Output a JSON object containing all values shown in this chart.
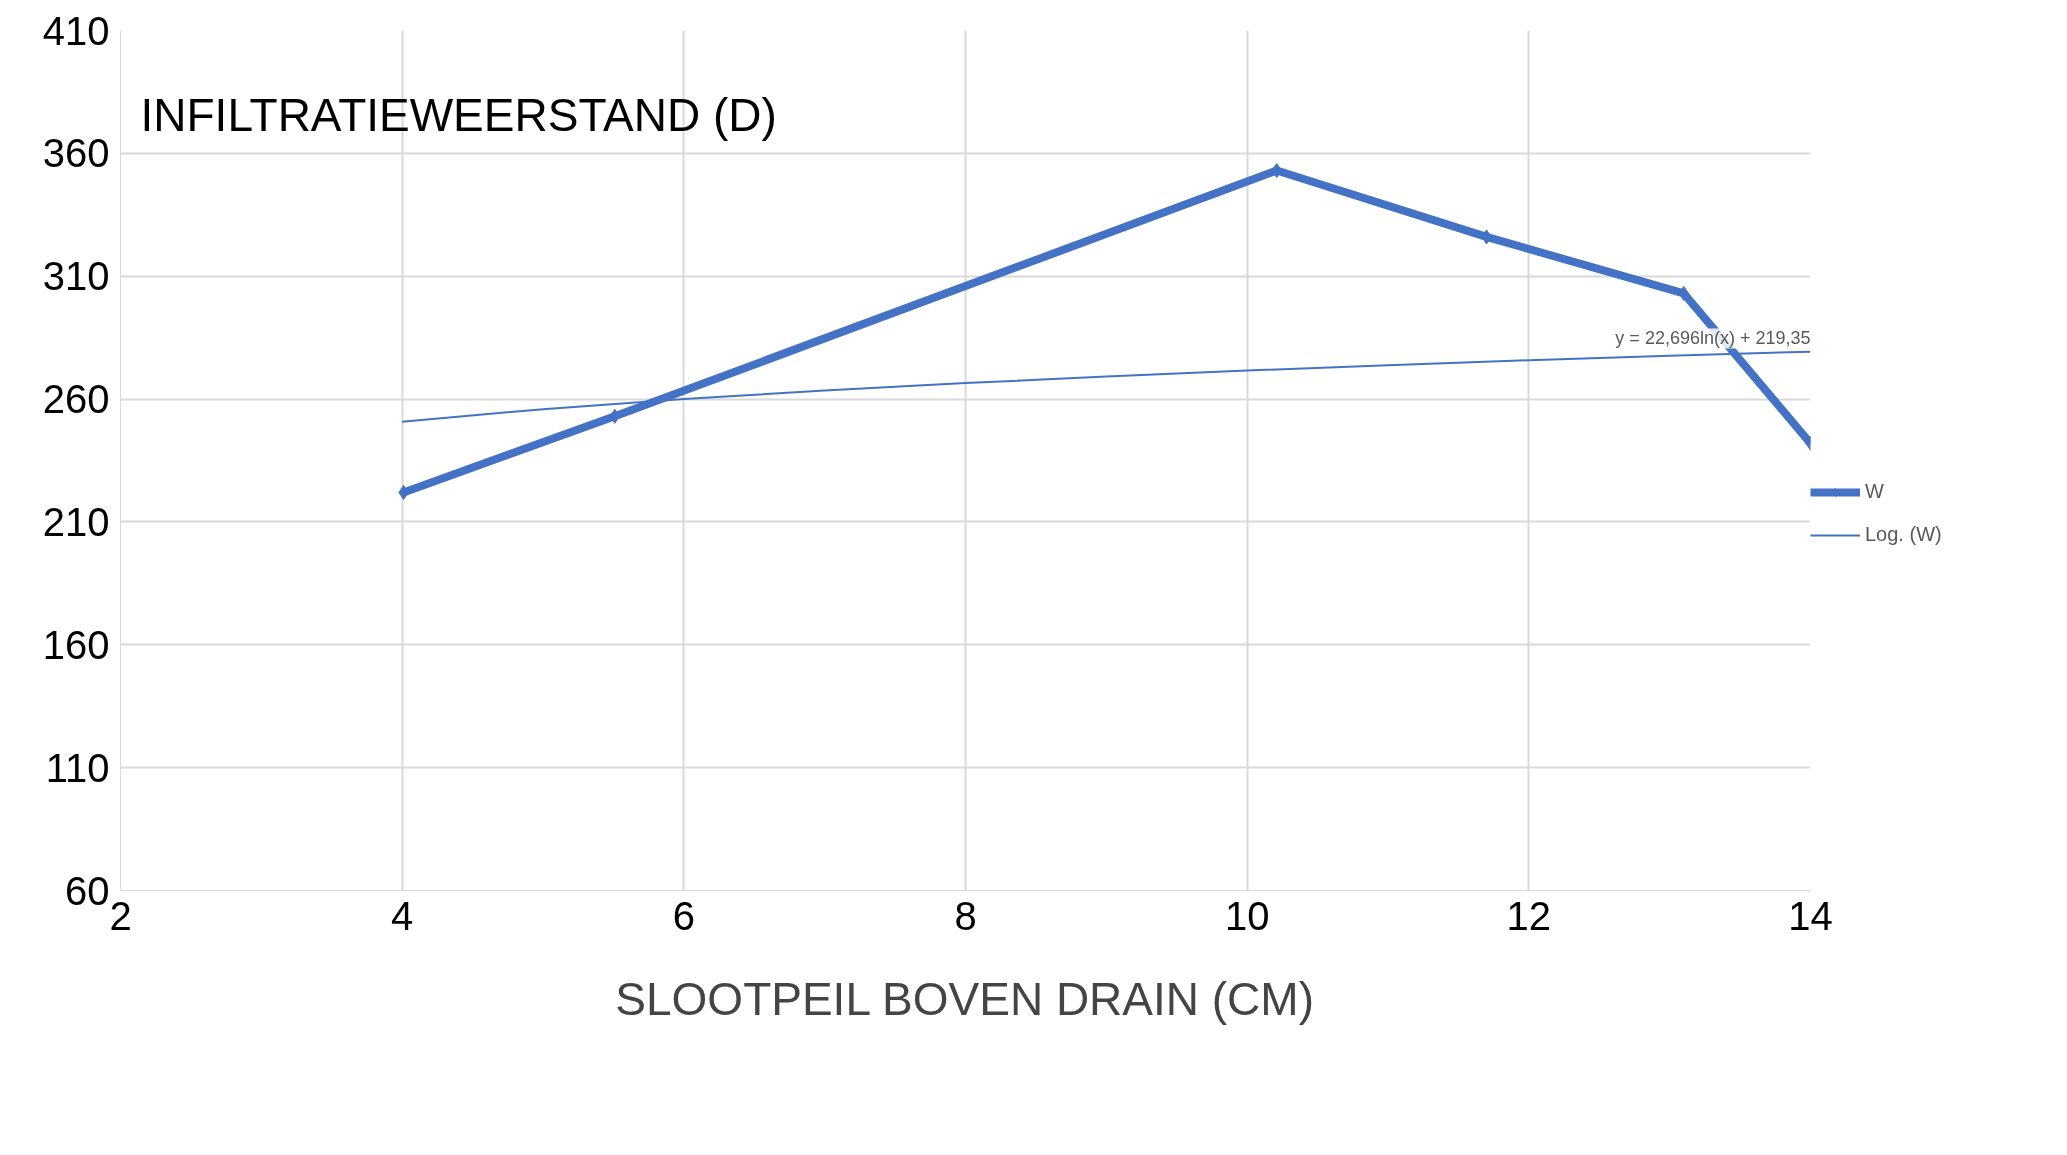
{
  "chart_data": {
    "type": "line",
    "xlabel": "SLOOTPEIL BOVEN DRAIN (CM)",
    "ylabel": "INFILTRATIEWEERSTAND (D)",
    "xlim": [
      2,
      14
    ],
    "xticks": [
      2,
      4,
      6,
      8,
      10,
      12,
      14
    ],
    "ylim": [
      60,
      410
    ],
    "yticks": [
      60,
      110,
      160,
      210,
      260,
      310,
      360,
      410
    ],
    "grid": true,
    "legend": "right",
    "series": [
      {
        "name": "W",
        "color": "#4472c4",
        "marker": "diamond",
        "x": [
          4.01,
          5.51,
          10.21,
          11.7,
          13.1,
          14
        ],
        "values": [
          222,
          253,
          353,
          326,
          303,
          242
        ]
      },
      {
        "name": "Log. (W)",
        "color": "#4472c4",
        "marker": "none",
        "x": [
          4,
          5,
          6,
          7,
          8,
          9,
          10,
          11,
          12,
          13,
          14
        ],
        "values": [
          250.8,
          255.9,
          260.0,
          263.5,
          266.5,
          269.2,
          271.6,
          273.8,
          275.8,
          277.6,
          279.3
        ]
      }
    ],
    "annotations": [
      {
        "text": "y = 22,696ln(x) + 219,35",
        "x": 14,
        "y": 279
      }
    ]
  }
}
